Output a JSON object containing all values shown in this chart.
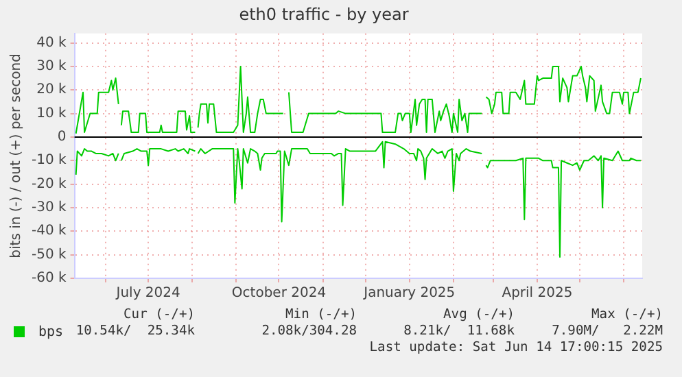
{
  "chart_data": {
    "type": "line",
    "title": "eth0 traffic - by year",
    "ylabel": "bits in (-) / out (+) per second",
    "xlim": [
      "2024-05-10",
      "2025-06-14"
    ],
    "xticks": [
      {
        "value": "2024-06-01",
        "label": null
      },
      {
        "value": "2024-07-01",
        "label": "July 2024"
      },
      {
        "value": "2024-08-01",
        "label": null
      },
      {
        "value": "2024-09-01",
        "label": null
      },
      {
        "value": "2024-10-01",
        "label": "October 2024"
      },
      {
        "value": "2024-11-01",
        "label": null
      },
      {
        "value": "2024-12-01",
        "label": null
      },
      {
        "value": "2025-01-01",
        "label": "January 2025"
      },
      {
        "value": "2025-02-01",
        "label": null
      },
      {
        "value": "2025-03-01",
        "label": null
      },
      {
        "value": "2025-04-01",
        "label": "April 2025"
      },
      {
        "value": "2025-05-01",
        "label": null
      },
      {
        "value": "2025-06-01",
        "label": null
      }
    ],
    "ylim": [
      -60000,
      44000
    ],
    "yticks": [
      {
        "value": -60000,
        "label": "-60 k"
      },
      {
        "value": -50000,
        "label": "-50 k"
      },
      {
        "value": -40000,
        "label": "-40 k"
      },
      {
        "value": -30000,
        "label": "-30 k"
      },
      {
        "value": -20000,
        "label": "-20 k"
      },
      {
        "value": -10000,
        "label": "-10 k"
      },
      0,
      {
        "value": 10000,
        "label": "10 k"
      },
      {
        "value": 20000,
        "label": "20 k"
      },
      {
        "value": 30000,
        "label": "30 k"
      },
      {
        "value": 40000,
        "label": "40 k"
      }
    ],
    "grid": true,
    "legend": "bottom",
    "marker": "none",
    "line_style": "solid",
    "ref_lines": [
      {
        "axis": "y",
        "value": 0,
        "color": "#000000"
      }
    ],
    "annotations": [
      "Cur (-/+)",
      "Min (-/+)",
      "Avg (-/+)",
      "Max (-/+)",
      "10.54k/  25.34k",
      "2.08k/304.28",
      "8.21k/  11.68k",
      "7.90M/   2.22M",
      "Last update: Sat Jun 14 17:00:15 2025"
    ],
    "series": [
      {
        "name": "bps",
        "color": "#00cc00",
        "x": [
          "2024-05-11",
          "2024-05-16",
          "2024-05-17",
          "2024-05-21",
          "2024-05-26",
          "2024-05-27",
          "2024-06-03",
          "2024-06-05",
          "2024-06-06",
          "2024-06-08",
          "2024-06-10",
          "2024-06-11",
          "2024-06-12",
          "2024-06-13",
          "2024-06-17",
          "2024-06-19",
          "2024-06-24",
          "2024-06-25",
          "2024-06-29",
          "2024-06-30",
          "2024-07-09",
          "2024-07-10",
          "2024-07-11",
          "2024-07-21",
          "2024-07-22",
          "2024-07-27",
          "2024-07-28",
          "2024-07-30",
          "2024-07-31",
          "2024-08-03",
          "2024-08-04",
          "2024-08-05",
          "2024-08-06",
          "2024-08-07",
          "2024-08-11",
          "2024-08-12",
          "2024-08-13",
          "2024-08-16",
          "2024-08-18",
          "2024-08-30",
          "2024-09-02",
          "2024-09-04",
          "2024-09-06",
          "2024-09-08",
          "2024-09-09",
          "2024-09-11",
          "2024-09-14",
          "2024-09-16",
          "2024-09-18",
          "2024-09-20",
          "2024-09-22",
          "2024-10-04",
          "2024-10-06",
          "2024-10-08",
          "2024-10-10",
          "2024-10-18",
          "2024-10-22",
          "2024-11-10",
          "2024-11-12",
          "2024-11-17",
          "2024-11-30",
          "2024-12-12",
          "2024-12-13",
          "2024-12-22",
          "2024-12-24",
          "2024-12-26",
          "2024-12-27",
          "2024-12-29",
          "2025-01-01",
          "2025-01-02",
          "2025-01-05",
          "2025-01-06",
          "2025-01-08",
          "2025-01-10",
          "2025-01-12",
          "2025-01-13",
          "2025-01-14",
          "2025-01-17",
          "2025-01-19",
          "2025-01-22",
          "2025-01-23",
          "2025-01-25",
          "2025-01-27",
          "2025-01-29",
          "2025-01-31",
          "2025-02-01",
          "2025-02-04",
          "2025-02-05",
          "2025-02-07",
          "2025-02-09",
          "2025-02-11",
          "2025-02-12",
          "2025-02-21",
          "2025-02-23",
          "2025-02-24",
          "2025-02-26",
          "2025-02-28",
          "2025-03-02",
          "2025-03-03",
          "2025-03-07",
          "2025-03-08",
          "2025-03-12",
          "2025-03-13",
          "2025-03-17",
          "2025-03-20",
          "2025-03-23",
          "2025-03-24",
          "2025-03-30",
          "2025-04-01",
          "2025-04-02",
          "2025-04-05",
          "2025-04-11",
          "2025-04-12",
          "2025-04-16",
          "2025-04-17",
          "2025-04-19",
          "2025-04-22",
          "2025-04-23",
          "2025-04-26",
          "2025-04-29",
          "2025-05-02",
          "2025-05-03",
          "2025-05-05",
          "2025-05-06",
          "2025-05-08",
          "2025-05-11",
          "2025-05-12",
          "2025-05-16",
          "2025-05-17",
          "2025-05-20",
          "2025-05-22",
          "2025-05-24",
          "2025-05-29",
          "2025-05-31",
          "2025-06-01",
          "2025-06-04",
          "2025-06-05",
          "2025-06-08",
          "2025-06-11",
          "2025-06-13"
        ],
        "values": [
          1500,
          19000,
          2000,
          10000,
          10000,
          19000,
          19000,
          24000,
          20000,
          25000,
          14000,
          null,
          5000,
          11000,
          11000,
          2000,
          2000,
          10000,
          10000,
          2000,
          2000,
          5000,
          2000,
          2000,
          11000,
          11000,
          3000,
          9000,
          2000,
          2000,
          null,
          4000,
          10000,
          14000,
          14000,
          6000,
          14000,
          14000,
          2000,
          2000,
          5000,
          30000,
          2000,
          10000,
          17000,
          2000,
          2000,
          10000,
          16000,
          16000,
          10000,
          10000,
          null,
          19000,
          2000,
          2000,
          10000,
          10000,
          11000,
          10000,
          10000,
          10000,
          2000,
          2000,
          10000,
          10000,
          7000,
          10000,
          10000,
          2000,
          16000,
          5000,
          14000,
          16000,
          16000,
          2000,
          16000,
          16000,
          2000,
          11000,
          7000,
          11000,
          14000,
          9000,
          2000,
          10000,
          2000,
          16000,
          7000,
          10000,
          2000,
          10000,
          10000,
          null,
          17000,
          16000,
          10000,
          14000,
          19000,
          19000,
          10000,
          10000,
          19000,
          19000,
          16000,
          24000,
          14000,
          14000,
          26000,
          24000,
          25000,
          25000,
          30000,
          30000,
          15000,
          25000,
          21000,
          15000,
          26000,
          26000,
          30000,
          26000,
          21000,
          15000,
          26000,
          24000,
          11000,
          22000,
          15000,
          10000,
          10000,
          19000,
          19000,
          14000,
          19000,
          19000,
          10000,
          19000,
          19000,
          25000
        ]
      },
      {
        "color": "#00cc00",
        "x": [
          "2024-05-11",
          "2024-05-12",
          "2024-05-15",
          "2024-05-17",
          "2024-05-19",
          "2024-05-22",
          "2024-05-25",
          "2024-05-29",
          "2024-06-03",
          "2024-06-06",
          "2024-06-08",
          "2024-06-10",
          "2024-06-11",
          "2024-06-12",
          "2024-06-14",
          "2024-06-20",
          "2024-06-23",
          "2024-06-26",
          "2024-06-30",
          "2024-07-01",
          "2024-07-02",
          "2024-07-10",
          "2024-07-15",
          "2024-07-20",
          "2024-07-22",
          "2024-07-26",
          "2024-07-29",
          "2024-07-30",
          "2024-08-03",
          "2024-08-04",
          "2024-08-05",
          "2024-08-07",
          "2024-08-10",
          "2024-08-15",
          "2024-08-30",
          "2024-08-31",
          "2024-09-02",
          "2024-09-03",
          "2024-09-05",
          "2024-09-06",
          "2024-09-09",
          "2024-09-11",
          "2024-09-14",
          "2024-09-16",
          "2024-09-18",
          "2024-09-19",
          "2024-09-21",
          "2024-09-29",
          "2024-09-30",
          "2024-10-02",
          "2024-10-03",
          "2024-10-05",
          "2024-10-08",
          "2024-10-10",
          "2024-10-21",
          "2024-10-23",
          "2024-11-07",
          "2024-11-09",
          "2024-11-12",
          "2024-11-14",
          "2024-11-15",
          "2024-11-17",
          "2024-11-20",
          "2024-11-30",
          "2024-12-08",
          "2024-12-13",
          "2024-12-14",
          "2024-12-15",
          "2024-12-22",
          "2024-12-25",
          "2024-12-28",
          "2025-01-01",
          "2025-01-04",
          "2025-01-06",
          "2025-01-07",
          "2025-01-09",
          "2025-01-11",
          "2025-01-12",
          "2025-01-13",
          "2025-01-17",
          "2025-01-21",
          "2025-01-24",
          "2025-01-26",
          "2025-01-28",
          "2025-01-31",
          "2025-02-01",
          "2025-02-03",
          "2025-02-05",
          "2025-02-06",
          "2025-02-10",
          "2025-02-13",
          "2025-02-21",
          "2025-02-23",
          "2025-02-24",
          "2025-02-25",
          "2025-02-27",
          "2025-03-07",
          "2025-03-17",
          "2025-03-22",
          "2025-03-23",
          "2025-03-24",
          "2025-04-02",
          "2025-04-05",
          "2025-04-11",
          "2025-04-12",
          "2025-04-16",
          "2025-04-17",
          "2025-04-18",
          "2025-04-22",
          "2025-04-26",
          "2025-04-29",
          "2025-05-01",
          "2025-05-04",
          "2025-05-07",
          "2025-05-11",
          "2025-05-14",
          "2025-05-16",
          "2025-05-17",
          "2025-05-18",
          "2025-05-24",
          "2025-05-28",
          "2025-05-31",
          "2025-06-05",
          "2025-06-06",
          "2025-06-10",
          "2025-06-13"
        ],
        "values": [
          -16000,
          -6000,
          -8000,
          -5000,
          -6000,
          -6000,
          -7000,
          -7000,
          -8000,
          -7000,
          -10000,
          -7000,
          null,
          -10000,
          -7000,
          -6000,
          -5000,
          -6000,
          -6000,
          -12000,
          -5000,
          -5000,
          -6000,
          -5000,
          -6000,
          -5000,
          -7000,
          -5000,
          -6000,
          null,
          -7000,
          -5000,
          -7000,
          -5000,
          -5000,
          -28000,
          -5000,
          -10000,
          -22000,
          -5000,
          -11000,
          -5000,
          -6000,
          -7000,
          -14000,
          -9000,
          -7000,
          -7000,
          -6000,
          -6000,
          -36000,
          -6000,
          -12000,
          -5000,
          -5000,
          -7000,
          -7000,
          -8000,
          -7000,
          -7000,
          -29000,
          -5000,
          -6000,
          -6000,
          -6000,
          -2000,
          -13000,
          -2000,
          -3000,
          -4000,
          -5000,
          -7000,
          -7000,
          -10000,
          -5000,
          -6000,
          -9000,
          -18000,
          -9000,
          -5000,
          -7000,
          -6000,
          -9000,
          -6000,
          -5000,
          -23000,
          -7000,
          -10000,
          -7000,
          -5000,
          -6000,
          -7000,
          null,
          -12000,
          -13000,
          -10000,
          -10000,
          -10000,
          -9000,
          -35000,
          -9000,
          -9000,
          -10000,
          -10000,
          -13000,
          -13000,
          -51000,
          -10000,
          -11000,
          -12000,
          -11000,
          -14000,
          -10000,
          -10000,
          -8000,
          -10000,
          -8000,
          -30000,
          -9000,
          -10000,
          -6000,
          -10000,
          -10000,
          -9000,
          -10000,
          -10000
        ]
      }
    ]
  }
}
